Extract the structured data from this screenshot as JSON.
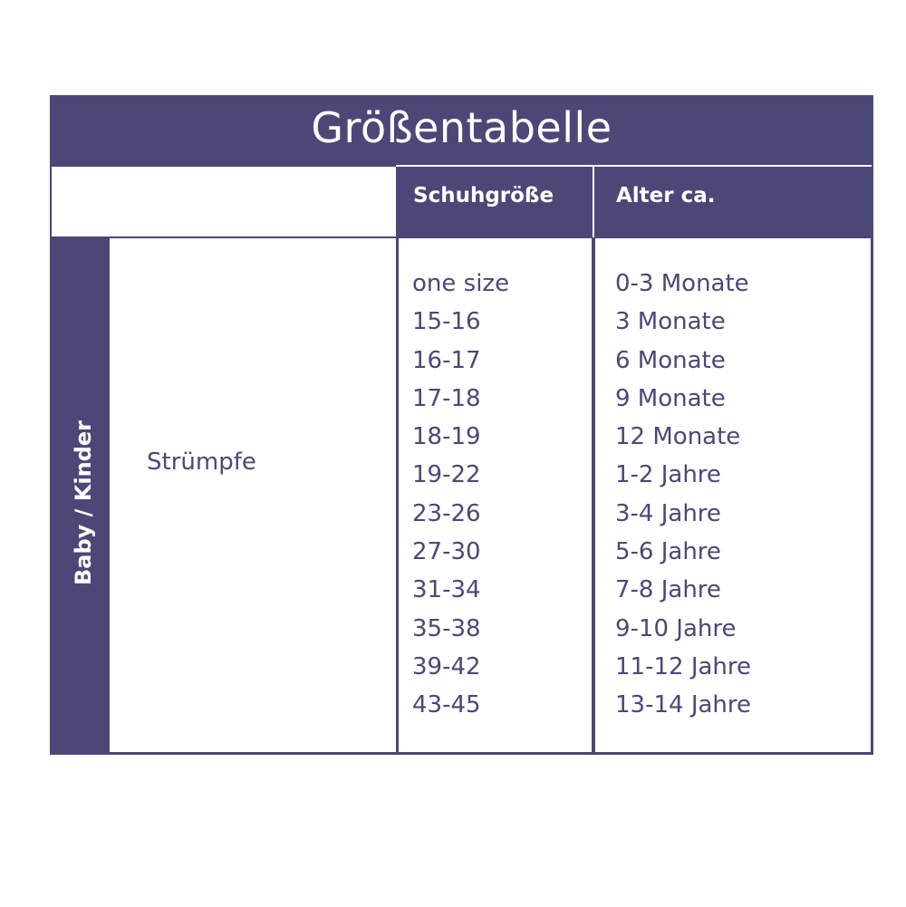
{
  "title": "Größentabelle",
  "headers": {
    "shoe_size": "Schuhgröße",
    "age": "Alter ca."
  },
  "category": "Baby / Kinder",
  "product": "Strümpfe",
  "rows": [
    {
      "size": "one size",
      "age": "0-3 Monate"
    },
    {
      "size": "15-16",
      "age": "3 Monate"
    },
    {
      "size": "16-17",
      "age": "6 Monate"
    },
    {
      "size": "17-18",
      "age": "9 Monate"
    },
    {
      "size": "18-19",
      "age": "12 Monate"
    },
    {
      "size": "19-22",
      "age": "1-2 Jahre"
    },
    {
      "size": "23-26",
      "age": "3-4 Jahre"
    },
    {
      "size": "27-30",
      "age": "5-6 Jahre"
    },
    {
      "size": "31-34",
      "age": "7-8 Jahre"
    },
    {
      "size": "35-38",
      "age": "9-10 Jahre"
    },
    {
      "size": "39-42",
      "age": "11-12 Jahre"
    },
    {
      "size": "43-45",
      "age": "13-14 Jahre"
    }
  ],
  "colors": {
    "primary": "#4b4878",
    "background": "#ffffff"
  }
}
